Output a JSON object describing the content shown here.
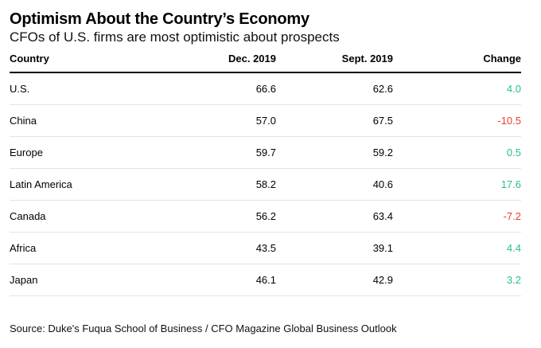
{
  "title": "Optimism About the Country’s Economy",
  "subtitle": "CFOs of U.S. firms are most optimistic about prospects",
  "source": "Source: Duke's Fuqua School of Business / CFO Magazine Global Business Outlook",
  "colors": {
    "positive": "#2bc17f",
    "negative": "#ee3a2e"
  },
  "chart_data": {
    "type": "table",
    "title": "Optimism About the Country’s Economy",
    "subtitle": "CFOs of U.S. firms are most optimistic about prospects",
    "columns": [
      "Country",
      "Dec. 2019",
      "Sept. 2019",
      "Change"
    ],
    "rows": [
      {
        "country": "U.S.",
        "dec": "66.6",
        "sep": "62.6",
        "change": "4.0",
        "direction": "positive"
      },
      {
        "country": "China",
        "dec": "57.0",
        "sep": "67.5",
        "change": "-10.5",
        "direction": "negative"
      },
      {
        "country": "Europe",
        "dec": "59.7",
        "sep": "59.2",
        "change": "0.5",
        "direction": "positive"
      },
      {
        "country": "Latin America",
        "dec": "58.2",
        "sep": "40.6",
        "change": "17.6",
        "direction": "positive"
      },
      {
        "country": "Canada",
        "dec": "56.2",
        "sep": "63.4",
        "change": "-7.2",
        "direction": "negative"
      },
      {
        "country": "Africa",
        "dec": "43.5",
        "sep": "39.1",
        "change": "4.4",
        "direction": "positive"
      },
      {
        "country": "Japan",
        "dec": "46.1",
        "sep": "42.9",
        "change": "3.2",
        "direction": "positive"
      }
    ]
  }
}
